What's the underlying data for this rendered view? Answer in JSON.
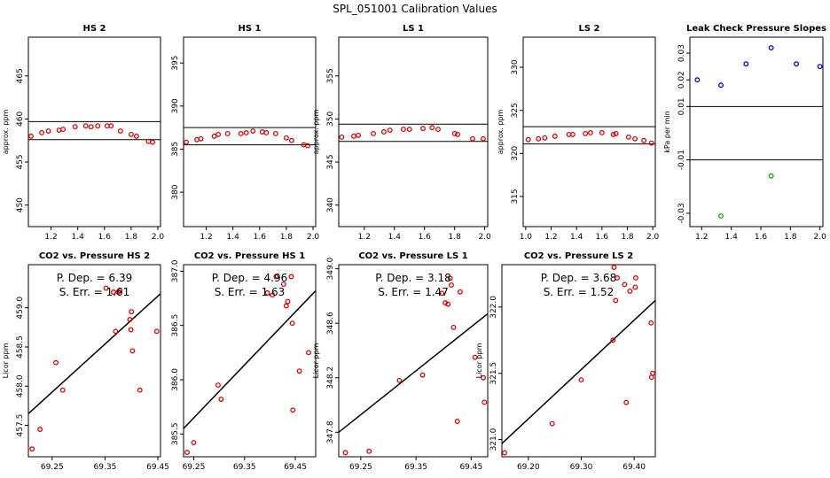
{
  "page_title": "SPL_051001  Calibration Values",
  "colors": {
    "marker": "#dd0000",
    "positive": "#0000cc",
    "negative": "#00aa00",
    "line": "#000000"
  },
  "chart_data": [
    {
      "id": "hs2_cal",
      "type": "scatter",
      "title": "HS 2",
      "ylabel": "approx. ppm",
      "xlim": [
        1.03,
        2.02
      ],
      "ylim": [
        447.5,
        469.5
      ],
      "xticks": [
        1.2,
        1.4,
        1.6,
        1.8,
        2.0
      ],
      "xtick_labels": [
        "1.2",
        "1.4",
        "1.6",
        "1.8",
        "2.0"
      ],
      "yticks": [
        450,
        455,
        460,
        465
      ],
      "ytick_labels": [
        "450",
        "455",
        "460",
        "465"
      ],
      "hlines": [
        459.7,
        457.6
      ],
      "x": [
        1.05,
        1.13,
        1.18,
        1.26,
        1.29,
        1.38,
        1.46,
        1.5,
        1.55,
        1.62,
        1.65,
        1.72,
        1.8,
        1.84,
        1.93,
        1.96
      ],
      "y": [
        458.0,
        458.4,
        458.6,
        458.7,
        458.8,
        459.1,
        459.2,
        459.1,
        459.2,
        459.2,
        459.2,
        458.6,
        458.2,
        458.0,
        457.4,
        457.3
      ]
    },
    {
      "id": "hs1_cal",
      "type": "scatter",
      "title": "HS 1",
      "xlim": [
        1.03,
        2.02
      ],
      "ylim": [
        376,
        398
      ],
      "xticks": [
        1.2,
        1.4,
        1.6,
        1.8,
        2.0
      ],
      "xtick_labels": [
        "1.2",
        "1.4",
        "1.6",
        "1.8",
        "2.0"
      ],
      "yticks": [
        380,
        385,
        390,
        395
      ],
      "ytick_labels": [
        "380",
        "385",
        "390",
        "395"
      ],
      "hlines": [
        387.5,
        385.5
      ],
      "x": [
        1.05,
        1.13,
        1.16,
        1.26,
        1.29,
        1.36,
        1.46,
        1.5,
        1.55,
        1.62,
        1.65,
        1.72,
        1.8,
        1.84,
        1.93,
        1.96
      ],
      "y": [
        385.8,
        386.1,
        386.2,
        386.5,
        386.7,
        386.8,
        386.8,
        386.9,
        387.1,
        387.0,
        386.9,
        386.8,
        386.3,
        386.0,
        385.5,
        385.4
      ]
    },
    {
      "id": "ls1_cal",
      "type": "scatter",
      "title": "LS 1",
      "ylabel": "approx. ppm",
      "xlim": [
        1.03,
        2.02
      ],
      "ylim": [
        337.5,
        359.5
      ],
      "xticks": [
        1.2,
        1.4,
        1.6,
        1.8,
        2.0
      ],
      "xtick_labels": [
        "1.2",
        "1.4",
        "1.6",
        "1.8",
        "2.0"
      ],
      "yticks": [
        340,
        345,
        350,
        355
      ],
      "ytick_labels": [
        "340",
        "345",
        "350",
        "355"
      ],
      "hlines": [
        349.4,
        347.4
      ],
      "x": [
        1.05,
        1.13,
        1.16,
        1.26,
        1.33,
        1.37,
        1.46,
        1.5,
        1.59,
        1.65,
        1.69,
        1.8,
        1.82,
        1.92,
        1.99
      ],
      "y": [
        347.9,
        348.0,
        348.1,
        348.3,
        348.5,
        348.7,
        348.8,
        348.8,
        348.9,
        349.0,
        348.8,
        348.3,
        348.2,
        347.7,
        347.7
      ]
    },
    {
      "id": "ls2_cal",
      "type": "scatter",
      "title": "LS 2",
      "ylabel": "approx. ppm",
      "xlim": [
        0.98,
        2.02
      ],
      "ylim": [
        311.5,
        333.5
      ],
      "xticks": [
        1.0,
        1.2,
        1.4,
        1.6,
        1.8,
        2.0
      ],
      "xtick_labels": [
        "1.0",
        "1.2",
        "1.4",
        "1.6",
        "1.8",
        "2.0"
      ],
      "yticks": [
        315,
        320,
        325,
        330
      ],
      "ytick_labels": [
        "315",
        "320",
        "325",
        "330"
      ],
      "hlines": [
        323.1,
        321.1
      ],
      "x": [
        1.02,
        1.1,
        1.15,
        1.23,
        1.34,
        1.37,
        1.47,
        1.51,
        1.6,
        1.69,
        1.71,
        1.81,
        1.86,
        1.93,
        1.99
      ],
      "y": [
        321.6,
        321.7,
        321.8,
        322.0,
        322.2,
        322.2,
        322.3,
        322.4,
        322.4,
        322.2,
        322.3,
        321.9,
        321.7,
        321.5,
        321.2
      ]
    },
    {
      "id": "leak_check",
      "type": "scatter",
      "title": "Leak Check Pressure Slopes",
      "ylabel": "kPa per min",
      "xlim": [
        1.12,
        2.02
      ],
      "ylim": [
        -0.035,
        0.036
      ],
      "xticks": [
        1.2,
        1.4,
        1.6,
        1.8,
        2.0
      ],
      "xtick_labels": [
        "1.2",
        "1.4",
        "1.6",
        "1.8",
        "2.0"
      ],
      "yticks": [
        -0.03,
        -0.01,
        0.01,
        0.02,
        0.03
      ],
      "ytick_labels": [
        "-0.03",
        "-0.01",
        "0.01",
        "0.02",
        "0.03"
      ],
      "hlines": [
        0.01,
        -0.01
      ],
      "series": [
        {
          "name": "positive",
          "color": "#0000cc",
          "x": [
            1.17,
            1.33,
            1.5,
            1.67,
            1.84,
            2.0
          ],
          "y": [
            0.02,
            0.018,
            0.026,
            0.032,
            0.026,
            0.025
          ]
        },
        {
          "name": "negative",
          "color": "#00aa00",
          "x": [
            1.33,
            1.67
          ],
          "y": [
            -0.031,
            -0.016
          ]
        }
      ]
    },
    {
      "id": "hs2_reg",
      "type": "scatter",
      "title": "CO2 vs. Pressure HS 2",
      "ylabel": "Licor ppm",
      "xlim": [
        69.205,
        69.455
      ],
      "ylim": [
        457.1,
        459.55
      ],
      "xticks": [
        69.25,
        69.35,
        69.45
      ],
      "xtick_labels": [
        "69.25",
        "69.35",
        "69.45"
      ],
      "yticks": [
        457.5,
        458.0,
        458.5,
        459.0
      ],
      "ytick_labels": [
        "457.5",
        "458.0",
        "458.5",
        "459.0"
      ],
      "fit": [
        [
          69.205,
          457.65
        ],
        [
          69.455,
          459.18
        ]
      ],
      "stats": [
        "P. Dep. =  6.39",
        "S. Err. =  1.61"
      ],
      "x": [
        69.212,
        69.227,
        69.257,
        69.27,
        69.352,
        69.366,
        69.37,
        69.375,
        69.378,
        69.397,
        69.399,
        69.4,
        69.402,
        69.416,
        69.448
      ],
      "y": [
        457.2,
        457.45,
        458.3,
        457.95,
        459.25,
        459.2,
        458.7,
        459.2,
        459.22,
        458.85,
        458.72,
        458.95,
        458.45,
        457.95,
        458.7
      ]
    },
    {
      "id": "hs1_reg",
      "type": "scatter",
      "title": "CO2 vs. Pressure HS 1",
      "xlim": [
        69.23,
        69.49
      ],
      "ylim": [
        385.29,
        387.06
      ],
      "xticks": [
        69.25,
        69.35,
        69.45
      ],
      "xtick_labels": [
        "69.25",
        "69.35",
        "69.45"
      ],
      "yticks": [
        385.5,
        386.0,
        386.5,
        387.0
      ],
      "ytick_labels": [
        "385.5",
        "386.0",
        "386.5",
        "387.0"
      ],
      "fit": [
        [
          69.23,
          385.55
        ],
        [
          69.49,
          386.82
        ]
      ],
      "stats": [
        "P. Dep. =  4.96",
        "S. Err. =  1.63"
      ],
      "x": [
        69.237,
        69.25,
        69.298,
        69.304,
        69.395,
        69.405,
        69.412,
        69.427,
        69.432,
        69.435,
        69.442,
        69.444,
        69.445,
        69.458,
        69.476
      ],
      "y": [
        385.33,
        385.42,
        385.95,
        385.82,
        386.8,
        386.78,
        386.95,
        386.88,
        386.68,
        386.72,
        386.95,
        386.52,
        385.72,
        386.08,
        386.25
      ]
    },
    {
      "id": "ls1_reg",
      "type": "scatter",
      "title": "CO2 vs. Pressure LS 1",
      "ylabel": "Licor ppm",
      "xlim": [
        69.21,
        69.48
      ],
      "ylim": [
        347.62,
        349.03
      ],
      "xticks": [
        69.25,
        69.35,
        69.45
      ],
      "xtick_labels": [
        "69.25",
        "69.35",
        "69.45"
      ],
      "yticks": [
        347.8,
        348.2,
        348.6,
        349.0
      ],
      "ytick_labels": [
        "347.8",
        "348.2",
        "348.6",
        "349.0"
      ],
      "fit": [
        [
          69.21,
          347.8
        ],
        [
          69.48,
          348.67
        ]
      ],
      "stats": [
        "P. Dep. =  3.18",
        "S. Err. =  1.47"
      ],
      "x": [
        69.222,
        69.265,
        69.32,
        69.362,
        69.397,
        69.403,
        69.408,
        69.412,
        69.414,
        69.418,
        69.425,
        69.43,
        69.457,
        69.472,
        69.474
      ],
      "y": [
        347.65,
        347.66,
        348.18,
        348.22,
        348.82,
        348.75,
        348.74,
        348.93,
        348.88,
        348.57,
        347.88,
        348.83,
        348.35,
        348.2,
        348.02
      ]
    },
    {
      "id": "ls2_reg",
      "type": "scatter",
      "title": "CO2 vs. Pressure LS 2",
      "ylabel": "Licor ppm",
      "xlim": [
        69.15,
        69.44
      ],
      "ylim": [
        320.87,
        322.32
      ],
      "xticks": [
        69.2,
        69.3,
        69.4
      ],
      "xtick_labels": [
        "69.20",
        "69.30",
        "69.40"
      ],
      "yticks": [
        321.0,
        321.5,
        322.0
      ],
      "ytick_labels": [
        "321.0",
        "321.5",
        "322.0"
      ],
      "fit": [
        [
          69.15,
          320.97
        ],
        [
          69.44,
          322.05
        ]
      ],
      "stats": [
        "P. Dep. =  3.68",
        "S. Err. =  1.52"
      ],
      "x": [
        69.155,
        69.245,
        69.3,
        69.36,
        69.362,
        69.365,
        69.368,
        69.382,
        69.385,
        69.392,
        69.402,
        69.403,
        69.432,
        69.433,
        69.435
      ],
      "y": [
        320.9,
        321.12,
        321.45,
        321.75,
        322.3,
        322.05,
        322.22,
        322.17,
        321.28,
        322.12,
        322.15,
        322.22,
        321.88,
        321.47,
        321.5
      ]
    }
  ]
}
